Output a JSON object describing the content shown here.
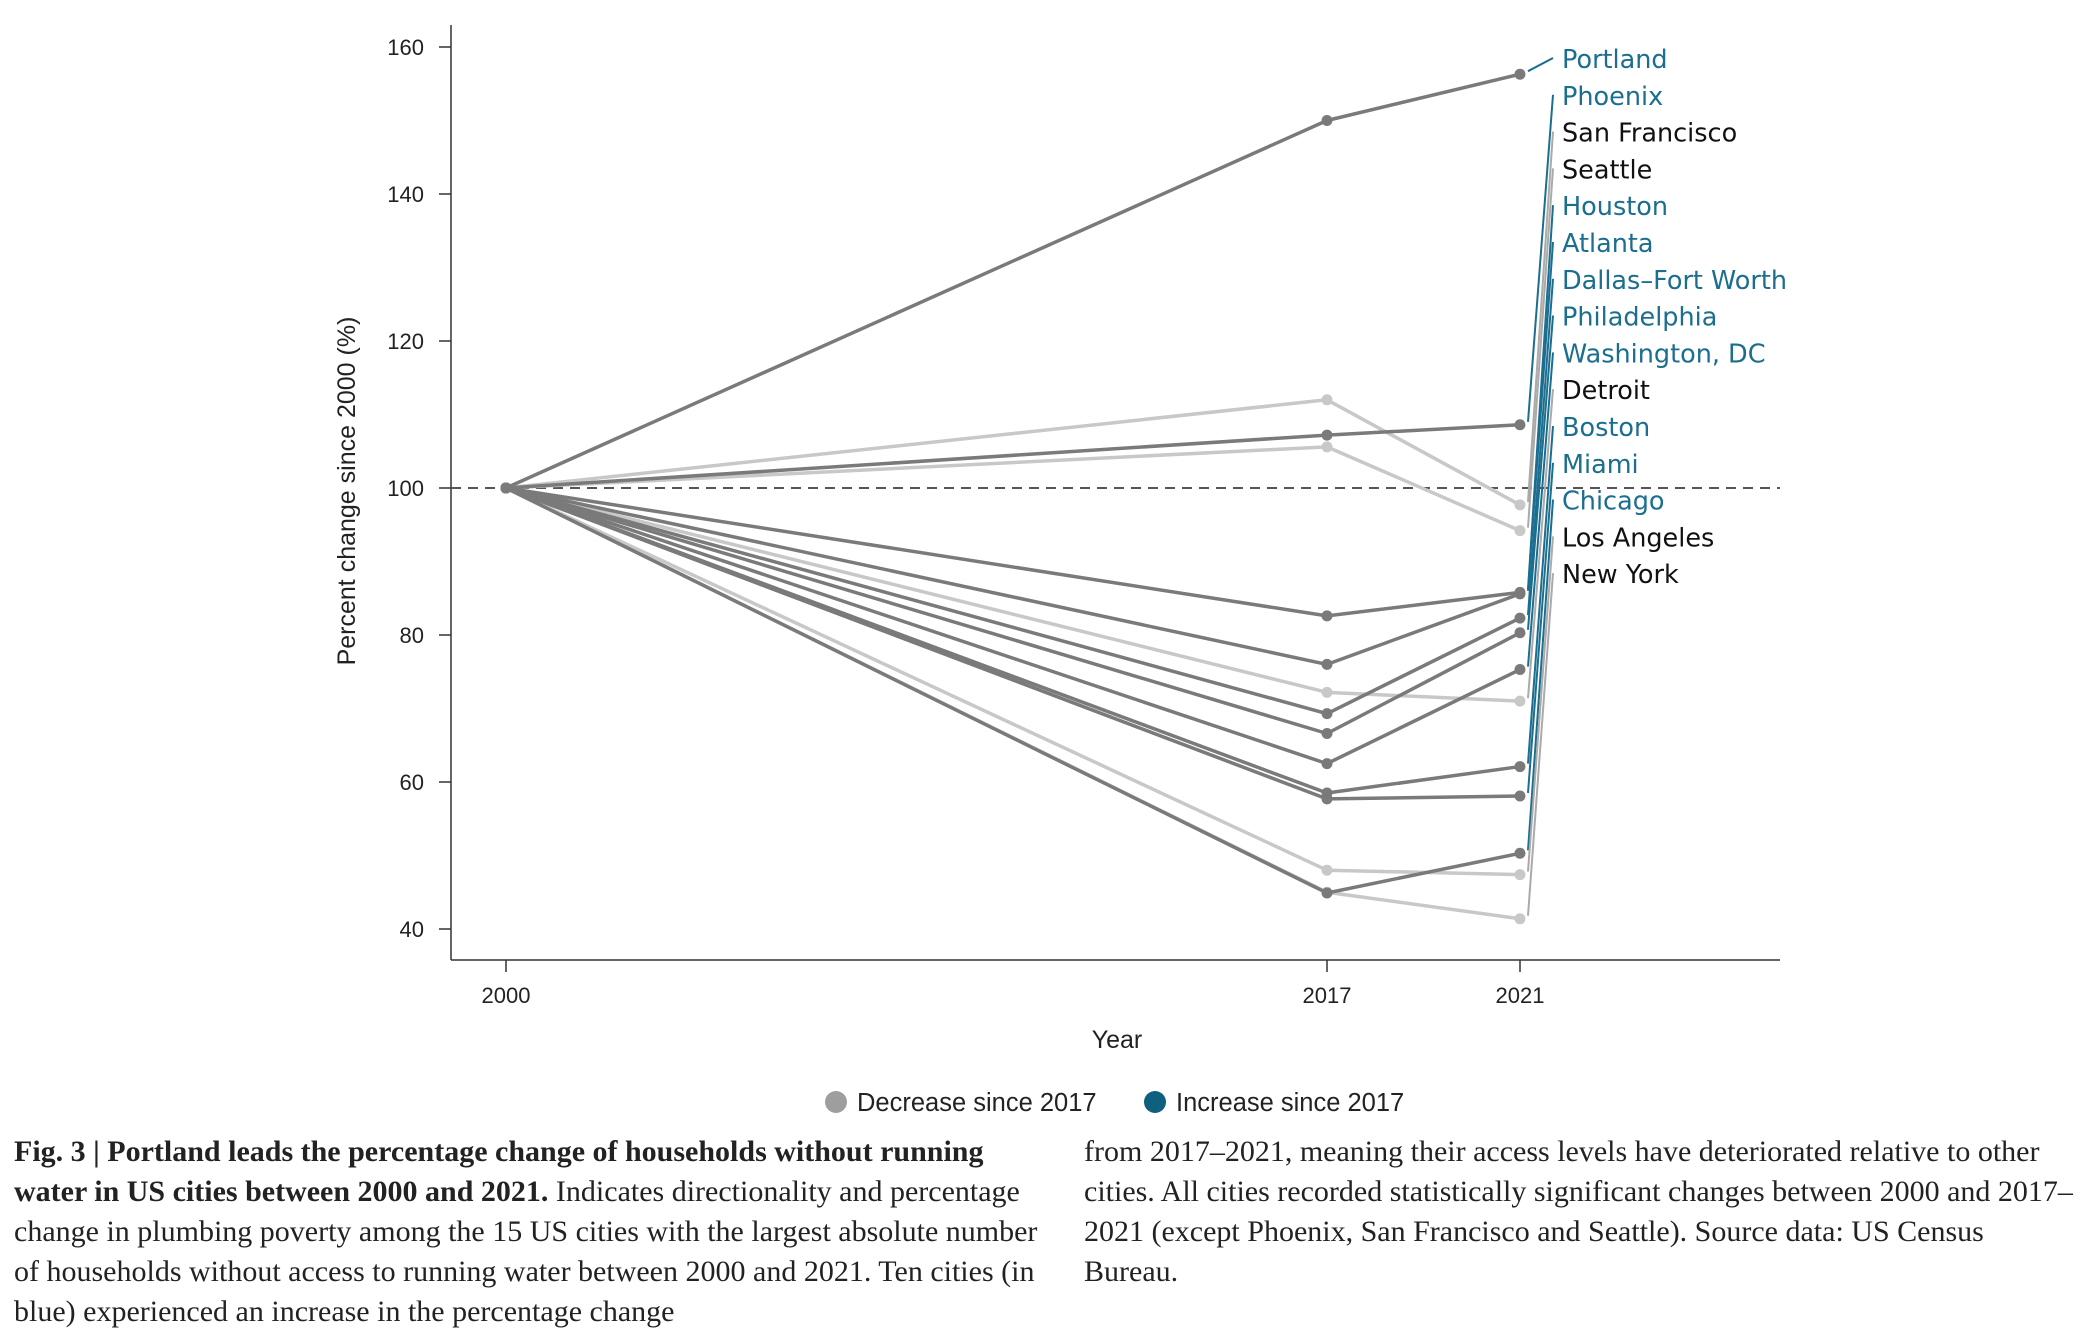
{
  "chart_data": {
    "type": "line",
    "xlabel": "Year",
    "ylabel": "Percent change since 2000 (%)",
    "x": [
      2000,
      2017,
      2021
    ],
    "xticks": [
      "2000",
      "2017",
      "2021"
    ],
    "yticks": [
      "40",
      "60",
      "80",
      "100",
      "120",
      "140",
      "160"
    ],
    "ylim": [
      36,
      166
    ],
    "reference_line": 100,
    "grid": false,
    "legend_position": "bottom",
    "legend": [
      {
        "label": "Decrease since 2017",
        "color": "#9e9e9e"
      },
      {
        "label": "Increase since 2017",
        "color": "#0f5f7f"
      }
    ],
    "series": [
      {
        "name": "Portland",
        "values": [
          100,
          150,
          156.3
        ],
        "trend": "increase"
      },
      {
        "name": "Phoenix",
        "values": [
          100,
          107.2,
          108.6
        ],
        "trend": "increase"
      },
      {
        "name": "San Francisco",
        "values": [
          100,
          112,
          97.7
        ],
        "trend": "decrease"
      },
      {
        "name": "Seattle",
        "values": [
          100,
          105.6,
          94.2
        ],
        "trend": "decrease"
      },
      {
        "name": "Houston",
        "values": [
          100,
          82.6,
          85.8
        ],
        "trend": "increase"
      },
      {
        "name": "Atlanta",
        "values": [
          100,
          76,
          85.6
        ],
        "trend": "increase"
      },
      {
        "name": "Dallas–Fort Worth",
        "values": [
          100,
          69.3,
          82.3
        ],
        "trend": "increase"
      },
      {
        "name": "Philadelphia",
        "values": [
          100,
          66.6,
          80.3
        ],
        "trend": "increase"
      },
      {
        "name": "Washington, DC",
        "values": [
          100,
          62.5,
          75.3
        ],
        "trend": "increase"
      },
      {
        "name": "Detroit",
        "values": [
          100,
          72.2,
          71
        ],
        "trend": "decrease"
      },
      {
        "name": "Boston",
        "values": [
          100,
          58.5,
          62.1
        ],
        "trend": "increase"
      },
      {
        "name": "Miami",
        "values": [
          100,
          57.7,
          58.1
        ],
        "trend": "increase"
      },
      {
        "name": "Chicago",
        "values": [
          100,
          44.9,
          50.3
        ],
        "trend": "increase"
      },
      {
        "name": "Los Angeles",
        "values": [
          100,
          48,
          47.4
        ],
        "trend": "decrease"
      },
      {
        "name": "New York",
        "values": [
          100,
          45,
          41.4
        ],
        "trend": "decrease"
      }
    ],
    "label_order": [
      "Portland",
      "Phoenix",
      "San Francisco",
      "Seattle",
      "Houston",
      "Atlanta",
      "Dallas–Fort Worth",
      "Philadelphia",
      "Washington, DC",
      "Detroit",
      "Boston",
      "Miami",
      "Chicago",
      "Los Angeles",
      "New York"
    ]
  },
  "colors": {
    "increase_line": "#7a7a7a",
    "decrease_line": "#c8c8c8",
    "increase_text": "#1b6e8f",
    "decrease_text": "#111111",
    "axis": "#333333"
  },
  "caption": {
    "fig_label": "Fig. 3 | ",
    "title": "Portland leads the percentage change of households without running water in US cities between 2000 and 2021.",
    "body_left": " Indicates directionality and percentage change in plumbing poverty among the 15 US cities with the largest absolute number of households without access to running water between 2000 and 2021. Ten cities (in blue) experienced an increase in the percentage change",
    "body_right": "from 2017–2021, meaning their access levels have deteriorated relative to other cities. All cities recorded statistically significant changes between 2000 and 2017–2021 (except Phoenix, San Francisco and Seattle). Source data: US Census Bureau."
  }
}
